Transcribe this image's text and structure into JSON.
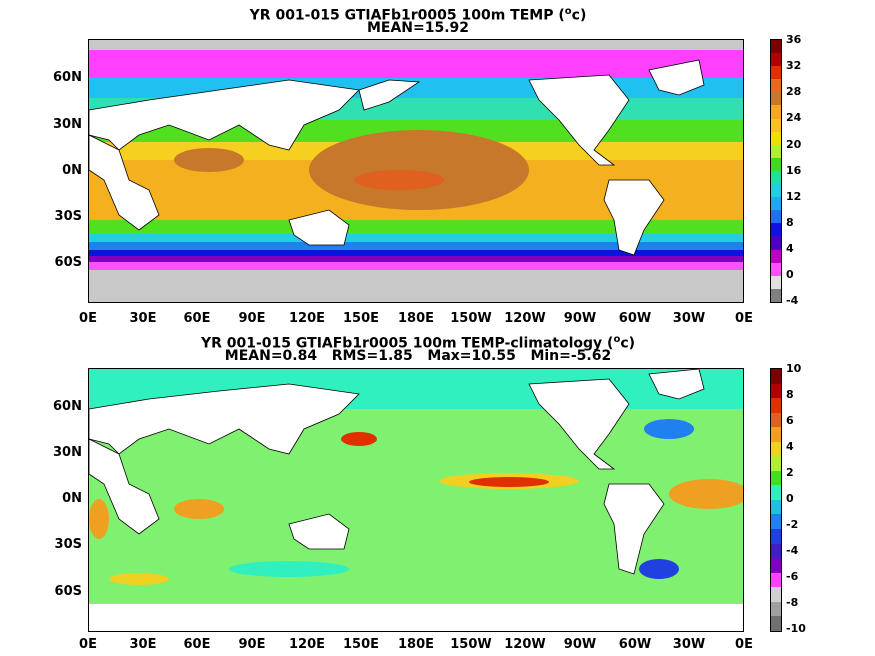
{
  "panel1": {
    "title": "YR 001-015 GTIAFb1r0005 100m TEMP (",
    "unit_sup": "o",
    "unit_tail": "c)",
    "stat": "MEAN=15.92",
    "y_ticks": [
      "60N",
      "30N",
      "0N",
      "30S",
      "60S"
    ],
    "x_ticks": [
      "0E",
      "30E",
      "60E",
      "90E",
      "120E",
      "150E",
      "180E",
      "150W",
      "120W",
      "90W",
      "60W",
      "30W",
      "0E"
    ],
    "colorbar_labels": [
      "36",
      "32",
      "28",
      "24",
      "20",
      "16",
      "12",
      "8",
      "4",
      "0",
      "-4"
    ],
    "colorbar_colors": [
      "#7a0000",
      "#b00000",
      "#e03000",
      "#e86a20",
      "#c8782a",
      "#f5a623",
      "#f8c020",
      "#f0e000",
      "#b0f030",
      "#40d820",
      "#20e0a0",
      "#20d0e0",
      "#20a8f0",
      "#2070f0",
      "#1010e0",
      "#5000c0",
      "#c000c0",
      "#ff50ff",
      "#e0e0e0",
      "#808080"
    ]
  },
  "panel2": {
    "title": "YR 001-015 GTIAFb1r0005 100m TEMP-climatology (",
    "unit_sup": "o",
    "unit_tail": "c)",
    "stat": "MEAN=0.84   RMS=1.85   Max=10.55   Min=-5.62",
    "y_ticks": [
      "60N",
      "30N",
      "0N",
      "30S",
      "60S"
    ],
    "x_ticks": [
      "0E",
      "30E",
      "60E",
      "90E",
      "120E",
      "150E",
      "180E",
      "150W",
      "120W",
      "90W",
      "60W",
      "30W",
      "0E"
    ],
    "colorbar_labels": [
      "10",
      "8",
      "6",
      "4",
      "2",
      "0",
      "-2",
      "-4",
      "-6",
      "-8",
      "-10"
    ],
    "colorbar_colors": [
      "#7a0000",
      "#b00000",
      "#e03000",
      "#e06020",
      "#f0a020",
      "#f0d020",
      "#b0f030",
      "#40e020",
      "#30f0c0",
      "#20c0e0",
      "#2080f0",
      "#2040e0",
      "#4020c0",
      "#8000c0",
      "#ff40ff",
      "#d0d0d0",
      "#a0a0a0",
      "#707070"
    ]
  }
}
